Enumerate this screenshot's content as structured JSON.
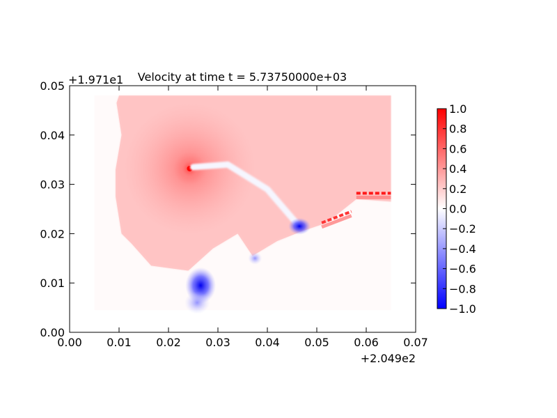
{
  "chart_data": {
    "type": "heatmap",
    "title": "Velocity at time t = 5.73750000e+03",
    "x_offset_label": "+2.049e2",
    "y_offset_label": "+1.971e1",
    "xlim": [
      0.0,
      0.07
    ],
    "ylim": [
      0.0,
      0.05
    ],
    "x_ticks": [
      "0.00",
      "0.01",
      "0.02",
      "0.03",
      "0.04",
      "0.05",
      "0.06",
      "0.07"
    ],
    "y_ticks": [
      "0.00",
      "0.01",
      "0.02",
      "0.03",
      "0.04",
      "0.05"
    ],
    "colorbar": {
      "colormap": "bwr",
      "range": [
        -1.0,
        1.0
      ],
      "ticks": [
        "1.0",
        "0.8",
        "0.6",
        "0.4",
        "0.2",
        "0.0",
        "−0.2",
        "−0.4",
        "−0.6",
        "−0.8",
        "−1.0"
      ]
    },
    "field": {
      "grid_extent": {
        "x": [
          0.005,
          0.065
        ],
        "y": [
          0.0045,
          0.048
        ]
      },
      "background_value": 0.02,
      "plume_boundary": [
        [
          0.01,
          0.048
        ],
        [
          0.065,
          0.048
        ],
        [
          0.065,
          0.0265
        ],
        [
          0.058,
          0.027
        ],
        [
          0.052,
          0.0222
        ],
        [
          0.047,
          0.0205
        ],
        [
          0.042,
          0.0185
        ],
        [
          0.037,
          0.0155
        ],
        [
          0.034,
          0.02
        ],
        [
          0.029,
          0.017
        ],
        [
          0.024,
          0.0125
        ],
        [
          0.0165,
          0.0135
        ],
        [
          0.0125,
          0.018
        ],
        [
          0.0105,
          0.02
        ],
        [
          0.0093,
          0.0275
        ],
        [
          0.0093,
          0.033
        ],
        [
          0.0105,
          0.04
        ],
        [
          0.0095,
          0.0465
        ]
      ],
      "features": [
        {
          "type": "jet_source",
          "x": 0.0243,
          "y": 0.0332,
          "value": 1.0
        },
        {
          "type": "shear_band",
          "points": [
            [
              0.025,
              0.0335
            ],
            [
              0.032,
              0.034
            ],
            [
              0.04,
              0.029
            ],
            [
              0.046,
              0.022
            ]
          ],
          "value": -0.05
        },
        {
          "type": "positive_strip",
          "points": [
            [
              0.058,
              0.0282
            ],
            [
              0.065,
              0.0282
            ]
          ],
          "value": 0.9
        },
        {
          "type": "positive_strip",
          "points": [
            [
              0.051,
              0.0222
            ],
            [
              0.057,
              0.0245
            ]
          ],
          "value": 0.8
        },
        {
          "type": "negative_cluster",
          "x": 0.0465,
          "y": 0.0215,
          "value": -0.7
        },
        {
          "type": "negative_plume",
          "x": 0.0265,
          "y": 0.0095,
          "value": -0.95
        },
        {
          "type": "negative_plume",
          "x": 0.0258,
          "y": 0.006,
          "value": -0.3
        },
        {
          "type": "weak_negative_lobe",
          "x": 0.0375,
          "y": 0.015,
          "value": -0.25
        }
      ]
    }
  }
}
